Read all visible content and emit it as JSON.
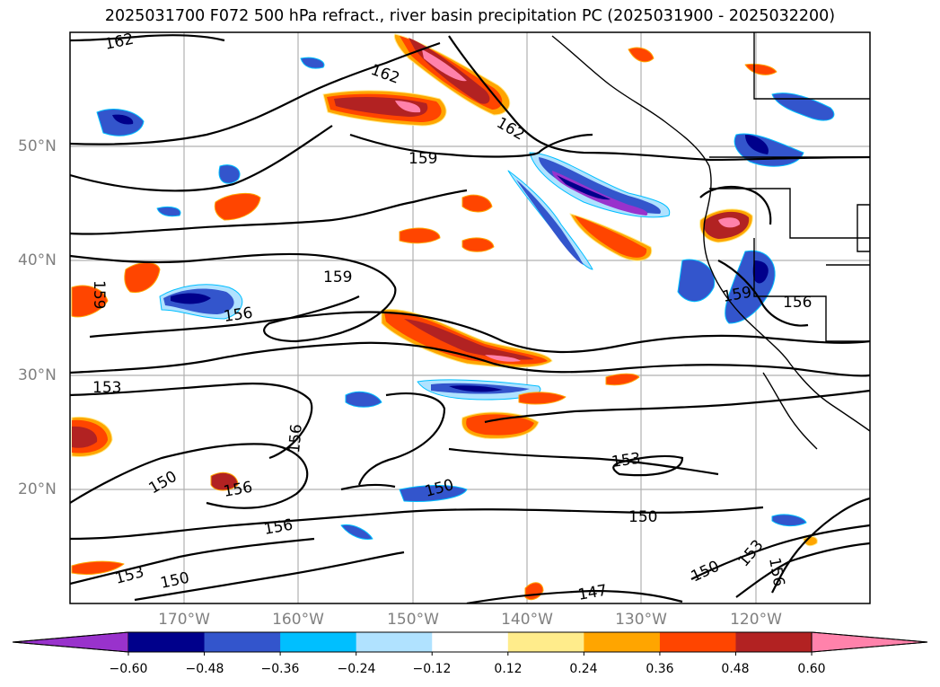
{
  "title": "2025031700 F072 500 hPa refract., river basin precipitation PC (2025031900 - 2025032200)",
  "map": {
    "lat_labels": [
      "50°N",
      "40°N",
      "30°N",
      "20°N"
    ],
    "lon_labels": [
      "170°W",
      "160°W",
      "150°W",
      "140°W",
      "130°W",
      "120°W"
    ],
    "contour_labels": [
      "162",
      "162",
      "162",
      "159",
      "159",
      "159",
      "159",
      "156",
      "156",
      "156",
      "156",
      "153",
      "153",
      "153",
      "153",
      "150",
      "150",
      "150",
      "150",
      "150",
      "147",
      "156",
      "156"
    ]
  },
  "colorbar": {
    "ticks": [
      "−0.60",
      "−0.48",
      "−0.36",
      "−0.24",
      "−0.12",
      "0.12",
      "0.24",
      "0.36",
      "0.48",
      "0.60"
    ],
    "colors": [
      "#9932cc",
      "#00008b",
      "#3355cc",
      "#00bfff",
      "#b0e2ff",
      "#ffffff",
      "#ffec8b",
      "#ffa500",
      "#ff4500",
      "#b22222",
      "#ff82ab"
    ]
  }
}
